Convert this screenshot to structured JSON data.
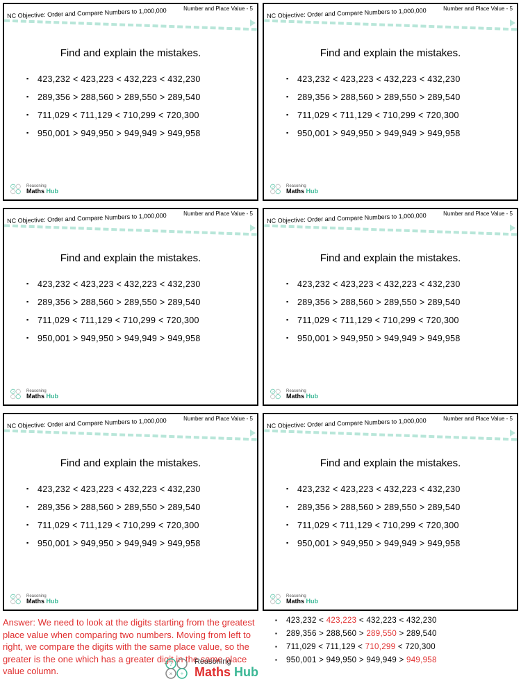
{
  "card": {
    "topic": "Number and Place Value - 5",
    "objective": "NC Objective: Order and Compare Numbers to 1,000,000",
    "prompt": "Find and explain the mistakes.",
    "lines": [
      "423,232  <  423,223  <  432,223  <  432,230",
      "289,356  >  288,560  >  289,550  >  289,540",
      "711,029  <  711,129  <  710,299  <  720,300",
      "950,001  >  949,950  >  949,949  >  949,958"
    ]
  },
  "logo": {
    "reasoning": "Reasoning",
    "maths": "Maths",
    "hub": "Hub"
  },
  "answer": {
    "text": "Answer: We need to look at the digits starting from the greatest place value when comparing two numbers. Moving from left to right, we compare the digits with the same place value, so the greater is the one which has a greater digit in the same place value column.",
    "lines": [
      {
        "parts": [
          "423,232  <  ",
          "423,223",
          "  <  432,223  <  432,230"
        ],
        "red_idx": 1
      },
      {
        "parts": [
          "289,356  >  288,560  >  ",
          "289,550",
          "  >  289,540"
        ],
        "red_idx": 1
      },
      {
        "parts": [
          "711,029  <  711,129  <  ",
          "710,299",
          "  <  720,300"
        ],
        "red_idx": 1
      },
      {
        "parts": [
          "950,001  >  949,950  >  949,949  >  ",
          "949,958",
          ""
        ],
        "red_idx": 1
      }
    ]
  },
  "colors": {
    "border": "#000000",
    "dash": "#b8e6d9",
    "red": "#e03030",
    "hub": "#3ab795"
  }
}
